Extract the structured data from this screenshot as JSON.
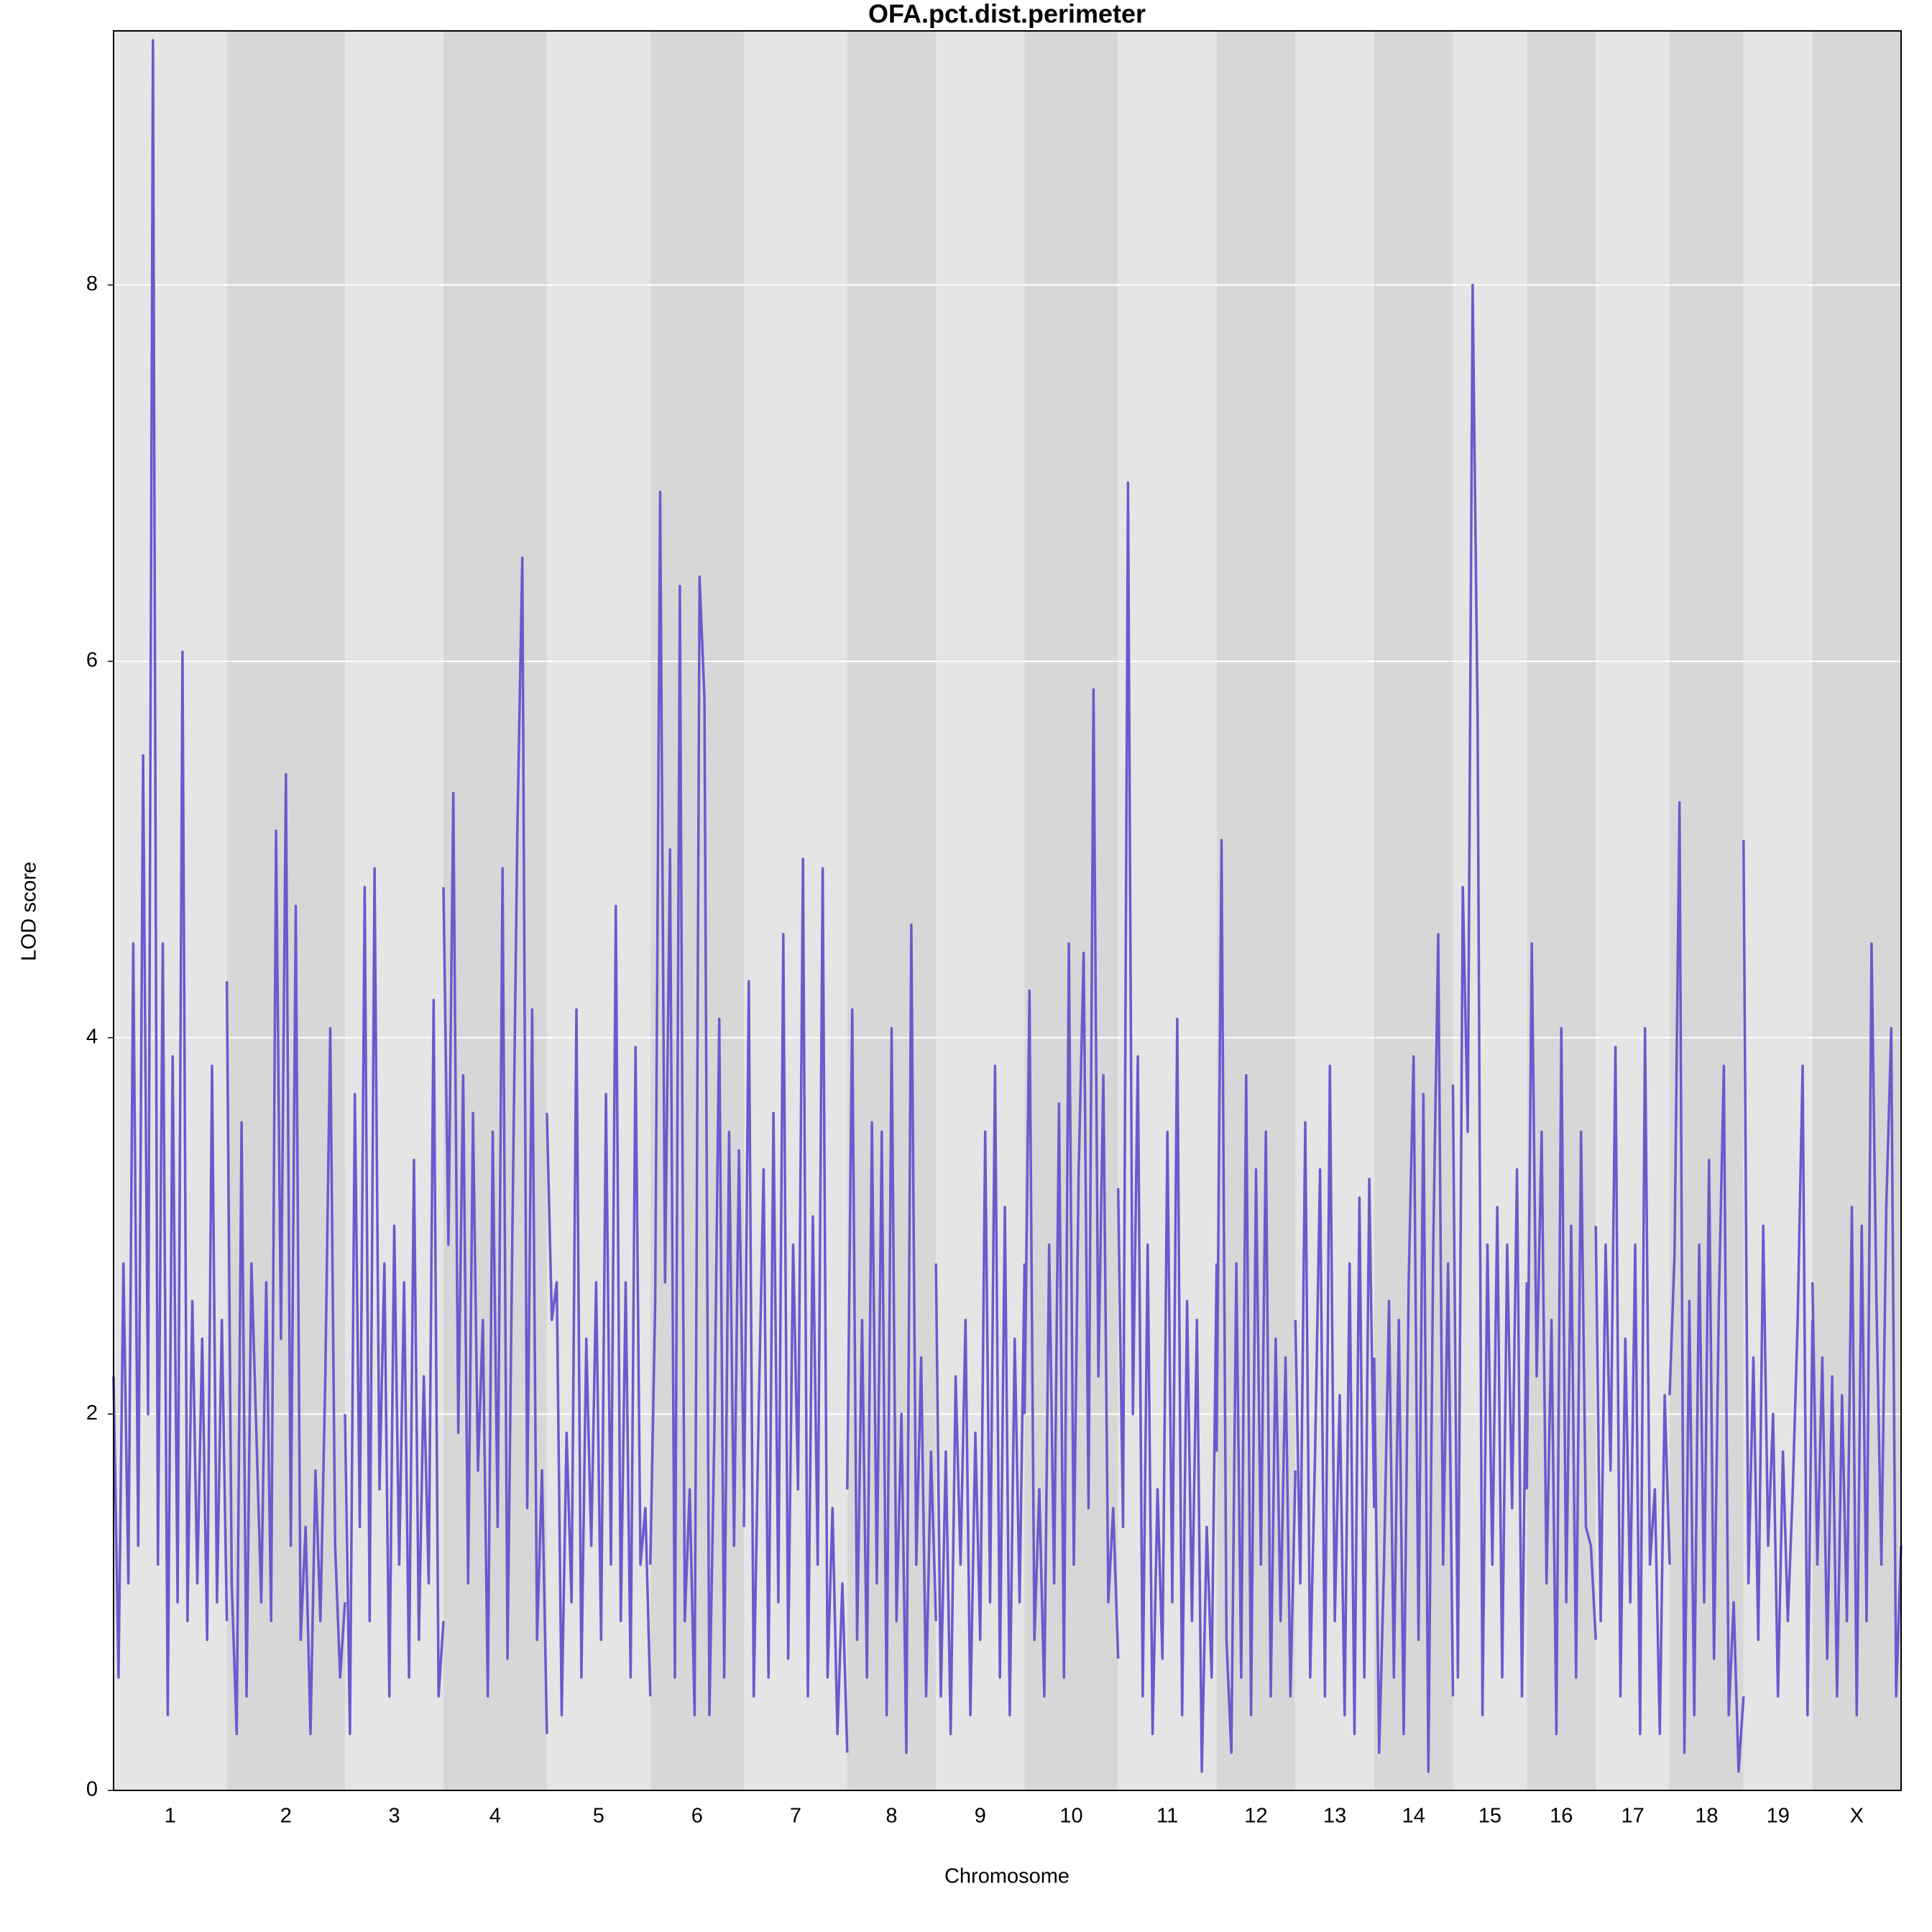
{
  "chart_data": {
    "type": "line",
    "title": "OFA.pct.dist.perimeter",
    "xlabel": "Chromosome",
    "ylabel": "LOD score",
    "ylim": [
      0,
      9.35
    ],
    "yticks": [
      0,
      2,
      4,
      6,
      8
    ],
    "grid": true,
    "color": "#6a5acd",
    "band_colors": [
      "#e5e5e5",
      "#d7d7d7"
    ],
    "series": [
      {
        "name": "1",
        "xlim": [
          0,
          92
        ],
        "x": [
          0,
          4,
          8,
          12,
          16,
          20,
          24,
          28,
          32,
          36,
          40,
          44,
          48,
          52,
          56,
          60,
          64,
          68,
          72,
          76,
          80,
          84,
          88,
          92
        ],
        "values": [
          2.2,
          0.6,
          2.8,
          1.1,
          4.5,
          1.3,
          5.5,
          2.0,
          9.3,
          1.2,
          4.5,
          0.4,
          3.9,
          1.0,
          6.05,
          0.9,
          2.6,
          1.1,
          2.4,
          0.8,
          3.85,
          1.0,
          2.5,
          0.9
        ]
      },
      {
        "name": "2",
        "xlim": [
          0,
          96
        ],
        "x": [
          0,
          4,
          8,
          12,
          16,
          20,
          24,
          28,
          32,
          36,
          40,
          44,
          48,
          52,
          56,
          60,
          64,
          68,
          72,
          76,
          80,
          84,
          88,
          92,
          96
        ],
        "values": [
          4.3,
          1.1,
          0.3,
          3.55,
          0.5,
          2.8,
          1.9,
          1.0,
          2.7,
          0.9,
          5.1,
          2.4,
          5.4,
          1.3,
          4.7,
          0.8,
          1.4,
          0.3,
          1.7,
          0.9,
          2.2,
          4.05,
          1.3,
          0.6,
          1.0
        ]
      },
      {
        "name": "3",
        "xlim": [
          0,
          80
        ],
        "x": [
          0,
          4,
          8,
          12,
          16,
          20,
          24,
          28,
          32,
          36,
          40,
          44,
          48,
          52,
          56,
          60,
          64,
          68,
          72,
          76,
          80
        ],
        "values": [
          2.0,
          0.3,
          3.7,
          1.4,
          4.8,
          0.9,
          4.9,
          1.6,
          2.8,
          0.5,
          3.0,
          1.2,
          2.7,
          0.6,
          3.35,
          0.8,
          2.2,
          1.1,
          4.2,
          0.5,
          0.9
        ]
      },
      {
        "name": "4",
        "xlim": [
          0,
          84
        ],
        "x": [
          0,
          4,
          8,
          12,
          16,
          20,
          24,
          28,
          32,
          36,
          40,
          44,
          48,
          52,
          56,
          60,
          64,
          68,
          72,
          76,
          80,
          84
        ],
        "values": [
          4.8,
          2.9,
          5.3,
          1.9,
          3.8,
          1.1,
          3.6,
          1.7,
          2.5,
          0.5,
          3.5,
          1.4,
          4.9,
          0.7,
          3.0,
          5.1,
          6.55,
          1.5,
          4.15,
          0.8,
          1.7,
          0.3
        ]
      },
      {
        "name": "5",
        "xlim": [
          0,
          84
        ],
        "x": [
          0,
          4,
          8,
          12,
          16,
          20,
          24,
          28,
          32,
          36,
          40,
          44,
          48,
          52,
          56,
          60,
          64,
          68,
          72,
          76,
          80,
          84
        ],
        "values": [
          3.6,
          2.5,
          2.7,
          0.4,
          1.9,
          1.0,
          4.15,
          0.6,
          2.4,
          1.3,
          2.7,
          0.8,
          3.7,
          1.2,
          4.7,
          0.9,
          2.7,
          0.6,
          3.95,
          1.2,
          1.5,
          0.5
        ]
      },
      {
        "name": "6",
        "xlim": [
          0,
          76
        ],
        "x": [
          0,
          4,
          8,
          12,
          16,
          20,
          24,
          28,
          32,
          36,
          40,
          44,
          48,
          52,
          56,
          60,
          64,
          68,
          72,
          76
        ],
        "values": [
          1.2,
          2.6,
          6.9,
          2.7,
          5.0,
          0.6,
          6.4,
          0.9,
          1.6,
          0.4,
          6.45,
          5.8,
          0.4,
          1.9,
          4.1,
          0.6,
          3.5,
          1.3,
          3.4,
          1.6
        ]
      },
      {
        "name": "7",
        "xlim": [
          0,
          84
        ],
        "x": [
          0,
          4,
          8,
          12,
          16,
          20,
          24,
          28,
          32,
          36,
          40,
          44,
          48,
          52,
          56,
          60,
          64,
          68,
          72,
          76,
          80,
          84
        ],
        "values": [
          1.4,
          4.3,
          0.5,
          2.0,
          3.3,
          0.6,
          3.6,
          1.0,
          4.55,
          0.7,
          2.9,
          1.6,
          4.95,
          0.5,
          3.05,
          1.2,
          4.9,
          0.6,
          1.5,
          0.3,
          1.1,
          0.2
        ]
      },
      {
        "name": "8",
        "xlim": [
          0,
          72
        ],
        "x": [
          0,
          4,
          8,
          12,
          16,
          20,
          24,
          28,
          32,
          36,
          40,
          44,
          48,
          52,
          56,
          60,
          64,
          68,
          72
        ],
        "values": [
          1.6,
          4.15,
          0.8,
          2.5,
          0.6,
          3.55,
          1.1,
          3.5,
          0.4,
          4.05,
          0.9,
          2.0,
          0.2,
          4.6,
          1.2,
          2.3,
          0.5,
          1.8,
          0.9
        ]
      },
      {
        "name": "9",
        "xlim": [
          0,
          72
        ],
        "x": [
          0,
          4,
          8,
          12,
          16,
          20,
          24,
          28,
          32,
          36,
          40,
          44,
          48,
          52,
          56,
          60,
          64,
          68,
          72
        ],
        "values": [
          2.8,
          0.5,
          1.8,
          0.3,
          2.2,
          1.2,
          2.5,
          0.4,
          1.9,
          0.8,
          3.5,
          1.0,
          3.85,
          0.6,
          3.1,
          0.4,
          2.4,
          1.0,
          2.8
        ]
      },
      {
        "name": "10",
        "xlim": [
          0,
          76
        ],
        "x": [
          0,
          4,
          8,
          12,
          16,
          20,
          24,
          28,
          32,
          36,
          40,
          44,
          48,
          52,
          56,
          60,
          64,
          68,
          72,
          76
        ],
        "values": [
          2.0,
          4.25,
          0.8,
          1.6,
          0.5,
          2.9,
          1.1,
          3.65,
          0.6,
          4.5,
          1.2,
          3.3,
          4.45,
          1.5,
          5.85,
          2.2,
          3.8,
          1.0,
          1.5,
          0.7
        ]
      },
      {
        "name": "11",
        "xlim": [
          0,
          80
        ],
        "x": [
          0,
          4,
          8,
          12,
          16,
          20,
          24,
          28,
          32,
          36,
          40,
          44,
          48,
          52,
          56,
          60,
          64,
          68,
          72,
          76,
          80
        ],
        "values": [
          3.2,
          1.4,
          6.95,
          2.0,
          3.9,
          0.5,
          2.9,
          0.3,
          1.6,
          0.7,
          3.5,
          1.0,
          4.1,
          0.4,
          2.6,
          0.9,
          2.5,
          0.1,
          1.4,
          0.6,
          2.8
        ]
      },
      {
        "name": "12",
        "xlim": [
          0,
          64
        ],
        "x": [
          0,
          4,
          8,
          12,
          16,
          20,
          24,
          28,
          32,
          36,
          40,
          44,
          48,
          52,
          56,
          60,
          64
        ],
        "values": [
          1.8,
          5.05,
          0.8,
          0.2,
          2.8,
          0.6,
          3.8,
          0.4,
          3.3,
          1.2,
          3.5,
          0.5,
          2.4,
          0.9,
          2.3,
          0.5,
          1.7
        ]
      },
      {
        "name": "13",
        "xlim": [
          0,
          64
        ],
        "x": [
          0,
          4,
          8,
          12,
          16,
          20,
          24,
          28,
          32,
          36,
          40,
          44,
          48,
          52,
          56,
          60,
          64
        ],
        "values": [
          2.5,
          1.1,
          3.55,
          0.6,
          1.8,
          3.3,
          0.5,
          3.85,
          0.9,
          2.1,
          0.4,
          2.8,
          0.3,
          3.15,
          0.6,
          3.25,
          1.5
        ]
      },
      {
        "name": "14",
        "xlim": [
          0,
          64
        ],
        "x": [
          0,
          4,
          8,
          12,
          16,
          20,
          24,
          28,
          32,
          36,
          40,
          44,
          48,
          52,
          56,
          60,
          64
        ],
        "values": [
          2.3,
          0.2,
          1.2,
          2.6,
          0.6,
          2.5,
          0.3,
          2.7,
          3.9,
          0.8,
          3.7,
          0.1,
          2.9,
          4.55,
          1.2,
          2.8,
          0.5
        ]
      },
      {
        "name": "15",
        "xlim": [
          0,
          60
        ],
        "x": [
          0,
          4,
          8,
          12,
          16,
          20,
          24,
          28,
          32,
          36,
          40,
          44,
          48,
          52,
          56,
          60
        ],
        "values": [
          3.75,
          0.6,
          4.8,
          3.5,
          8.0,
          5.7,
          0.4,
          2.9,
          1.2,
          3.1,
          0.6,
          2.9,
          1.5,
          3.3,
          0.5,
          2.7
        ]
      },
      {
        "name": "16",
        "xlim": [
          0,
          56
        ],
        "x": [
          0,
          4,
          8,
          12,
          16,
          20,
          24,
          28,
          32,
          36,
          40,
          44,
          48,
          52,
          56
        ],
        "values": [
          1.6,
          4.5,
          2.2,
          3.5,
          1.1,
          2.5,
          0.3,
          4.05,
          1.0,
          3.0,
          0.6,
          3.5,
          1.4,
          1.3,
          0.8
        ]
      },
      {
        "name": "17",
        "xlim": [
          0,
          60
        ],
        "x": [
          0,
          4,
          8,
          12,
          16,
          20,
          24,
          28,
          32,
          36,
          40,
          44,
          48,
          52,
          56,
          60
        ],
        "values": [
          3.0,
          0.9,
          2.9,
          1.7,
          3.95,
          0.5,
          2.4,
          1.0,
          2.9,
          0.3,
          4.05,
          1.2,
          1.6,
          0.3,
          2.1,
          1.2
        ]
      },
      {
        "name": "18",
        "xlim": [
          0,
          60
        ],
        "x": [
          0,
          4,
          8,
          12,
          16,
          20,
          24,
          28,
          32,
          36,
          40,
          44,
          48,
          52,
          56,
          60
        ],
        "values": [
          2.1,
          2.85,
          5.25,
          0.2,
          2.6,
          0.4,
          2.9,
          1.0,
          3.35,
          0.7,
          2.6,
          3.85,
          0.4,
          1.0,
          0.1,
          0.5
        ]
      },
      {
        "name": "19",
        "xlim": [
          0,
          56
        ],
        "x": [
          0,
          4,
          8,
          12,
          16,
          20,
          24,
          28,
          32,
          36,
          40,
          44,
          48,
          52,
          56
        ],
        "values": [
          5.05,
          1.1,
          2.3,
          0.8,
          3.0,
          1.3,
          2.0,
          0.5,
          1.8,
          0.9,
          1.6,
          2.5,
          3.85,
          0.4,
          2.5
        ]
      },
      {
        "name": "X",
        "xlim": [
          0,
          72
        ],
        "x": [
          0,
          4,
          8,
          12,
          16,
          20,
          24,
          28,
          32,
          36,
          40,
          44,
          48,
          52,
          56,
          60,
          64,
          68,
          72
        ],
        "values": [
          2.7,
          1.2,
          2.3,
          0.7,
          2.2,
          0.5,
          2.1,
          0.9,
          3.1,
          0.4,
          3.0,
          0.9,
          4.5,
          2.6,
          1.2,
          3.1,
          4.05,
          0.5,
          1.3
        ]
      }
    ]
  }
}
